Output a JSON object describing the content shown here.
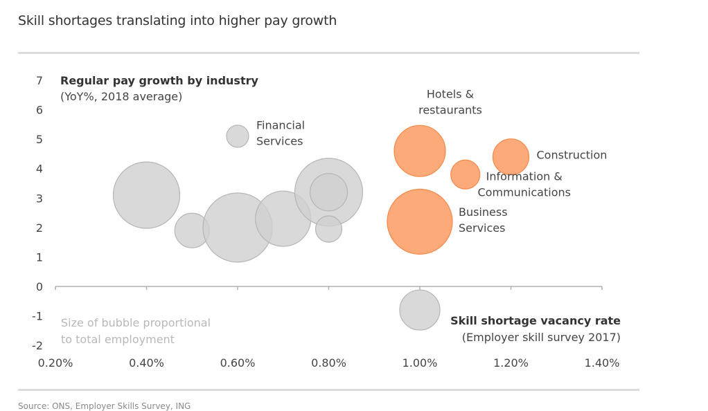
{
  "header": {
    "title": "Skill shortages translating into higher pay growth"
  },
  "footer": {
    "source": "Source: ONS, Employer Skills Survey, ING"
  },
  "chart_data": {
    "type": "scatter",
    "subtype": "bubble",
    "title": "Skill shortages translating into higher pay growth",
    "ylabel": "Regular pay growth by industry",
    "ylabel_sub": "(YoY%, 2018 average)",
    "xlabel": "Skill shortage vacancy rate",
    "xlabel_sub": "(Employer skill survey 2017)",
    "size_note": [
      "Size of bubble proportional",
      "to total employment"
    ],
    "xlim": [
      0.2,
      1.4
    ],
    "ylim": [
      -2,
      7
    ],
    "x_ticks": [
      0.2,
      0.4,
      0.6,
      0.8,
      1.0,
      1.2,
      1.4
    ],
    "x_tick_labels": [
      "0.20%",
      "0.40%",
      "0.60%",
      "0.80%",
      "1.00%",
      "1.20%",
      "1.40%"
    ],
    "y_ticks": [
      7,
      6,
      5,
      4,
      3,
      2,
      1,
      0,
      -1,
      -2
    ],
    "y_tick_labels": [
      "7",
      "6",
      "5",
      "4",
      "3",
      "2",
      "1",
      "0",
      "-1",
      "-2"
    ],
    "grid": false,
    "colors": {
      "highlight_fill": "#fdaa7a",
      "highlight_stroke": "#f5894a",
      "other_fill": "#cfcfcf",
      "other_stroke": "#b5b5b5"
    },
    "points": [
      {
        "label": "",
        "x": 0.4,
        "y": 3.1,
        "size": 48,
        "highlight": false
      },
      {
        "label": "",
        "x": 0.5,
        "y": 1.9,
        "size": 25,
        "highlight": false
      },
      {
        "label": "",
        "x": 0.6,
        "y": 2.0,
        "size": 50,
        "highlight": false
      },
      {
        "label": "Financial Services",
        "label_lines": [
          "Financial",
          "Services"
        ],
        "x": 0.6,
        "y": 5.1,
        "size": 16,
        "highlight": false
      },
      {
        "label": "",
        "x": 0.7,
        "y": 2.3,
        "size": 40,
        "highlight": false
      },
      {
        "label": "",
        "x": 0.8,
        "y": 3.2,
        "size": 49,
        "highlight": false
      },
      {
        "label": "",
        "x": 0.8,
        "y": 3.2,
        "size": 27,
        "highlight": false
      },
      {
        "label": "",
        "x": 0.8,
        "y": 1.95,
        "size": 19,
        "highlight": false
      },
      {
        "label": "",
        "x": 1.0,
        "y": -0.8,
        "size": 29,
        "highlight": false
      },
      {
        "label": "Hotels & restaurants",
        "label_lines": [
          "Hotels &",
          "restaurants"
        ],
        "x": 1.0,
        "y": 4.6,
        "size": 37,
        "highlight": true
      },
      {
        "label": "Business Services",
        "label_lines": [
          "Business",
          "Services"
        ],
        "x": 1.0,
        "y": 2.2,
        "size": 47,
        "highlight": true
      },
      {
        "label": "Information & Communications",
        "label_lines": [
          "Information &",
          "Communications"
        ],
        "x": 1.1,
        "y": 3.8,
        "size": 21,
        "highlight": true
      },
      {
        "label": "Construction",
        "label_lines": [
          "Construction"
        ],
        "x": 1.2,
        "y": 4.4,
        "size": 26,
        "highlight": true
      }
    ]
  }
}
